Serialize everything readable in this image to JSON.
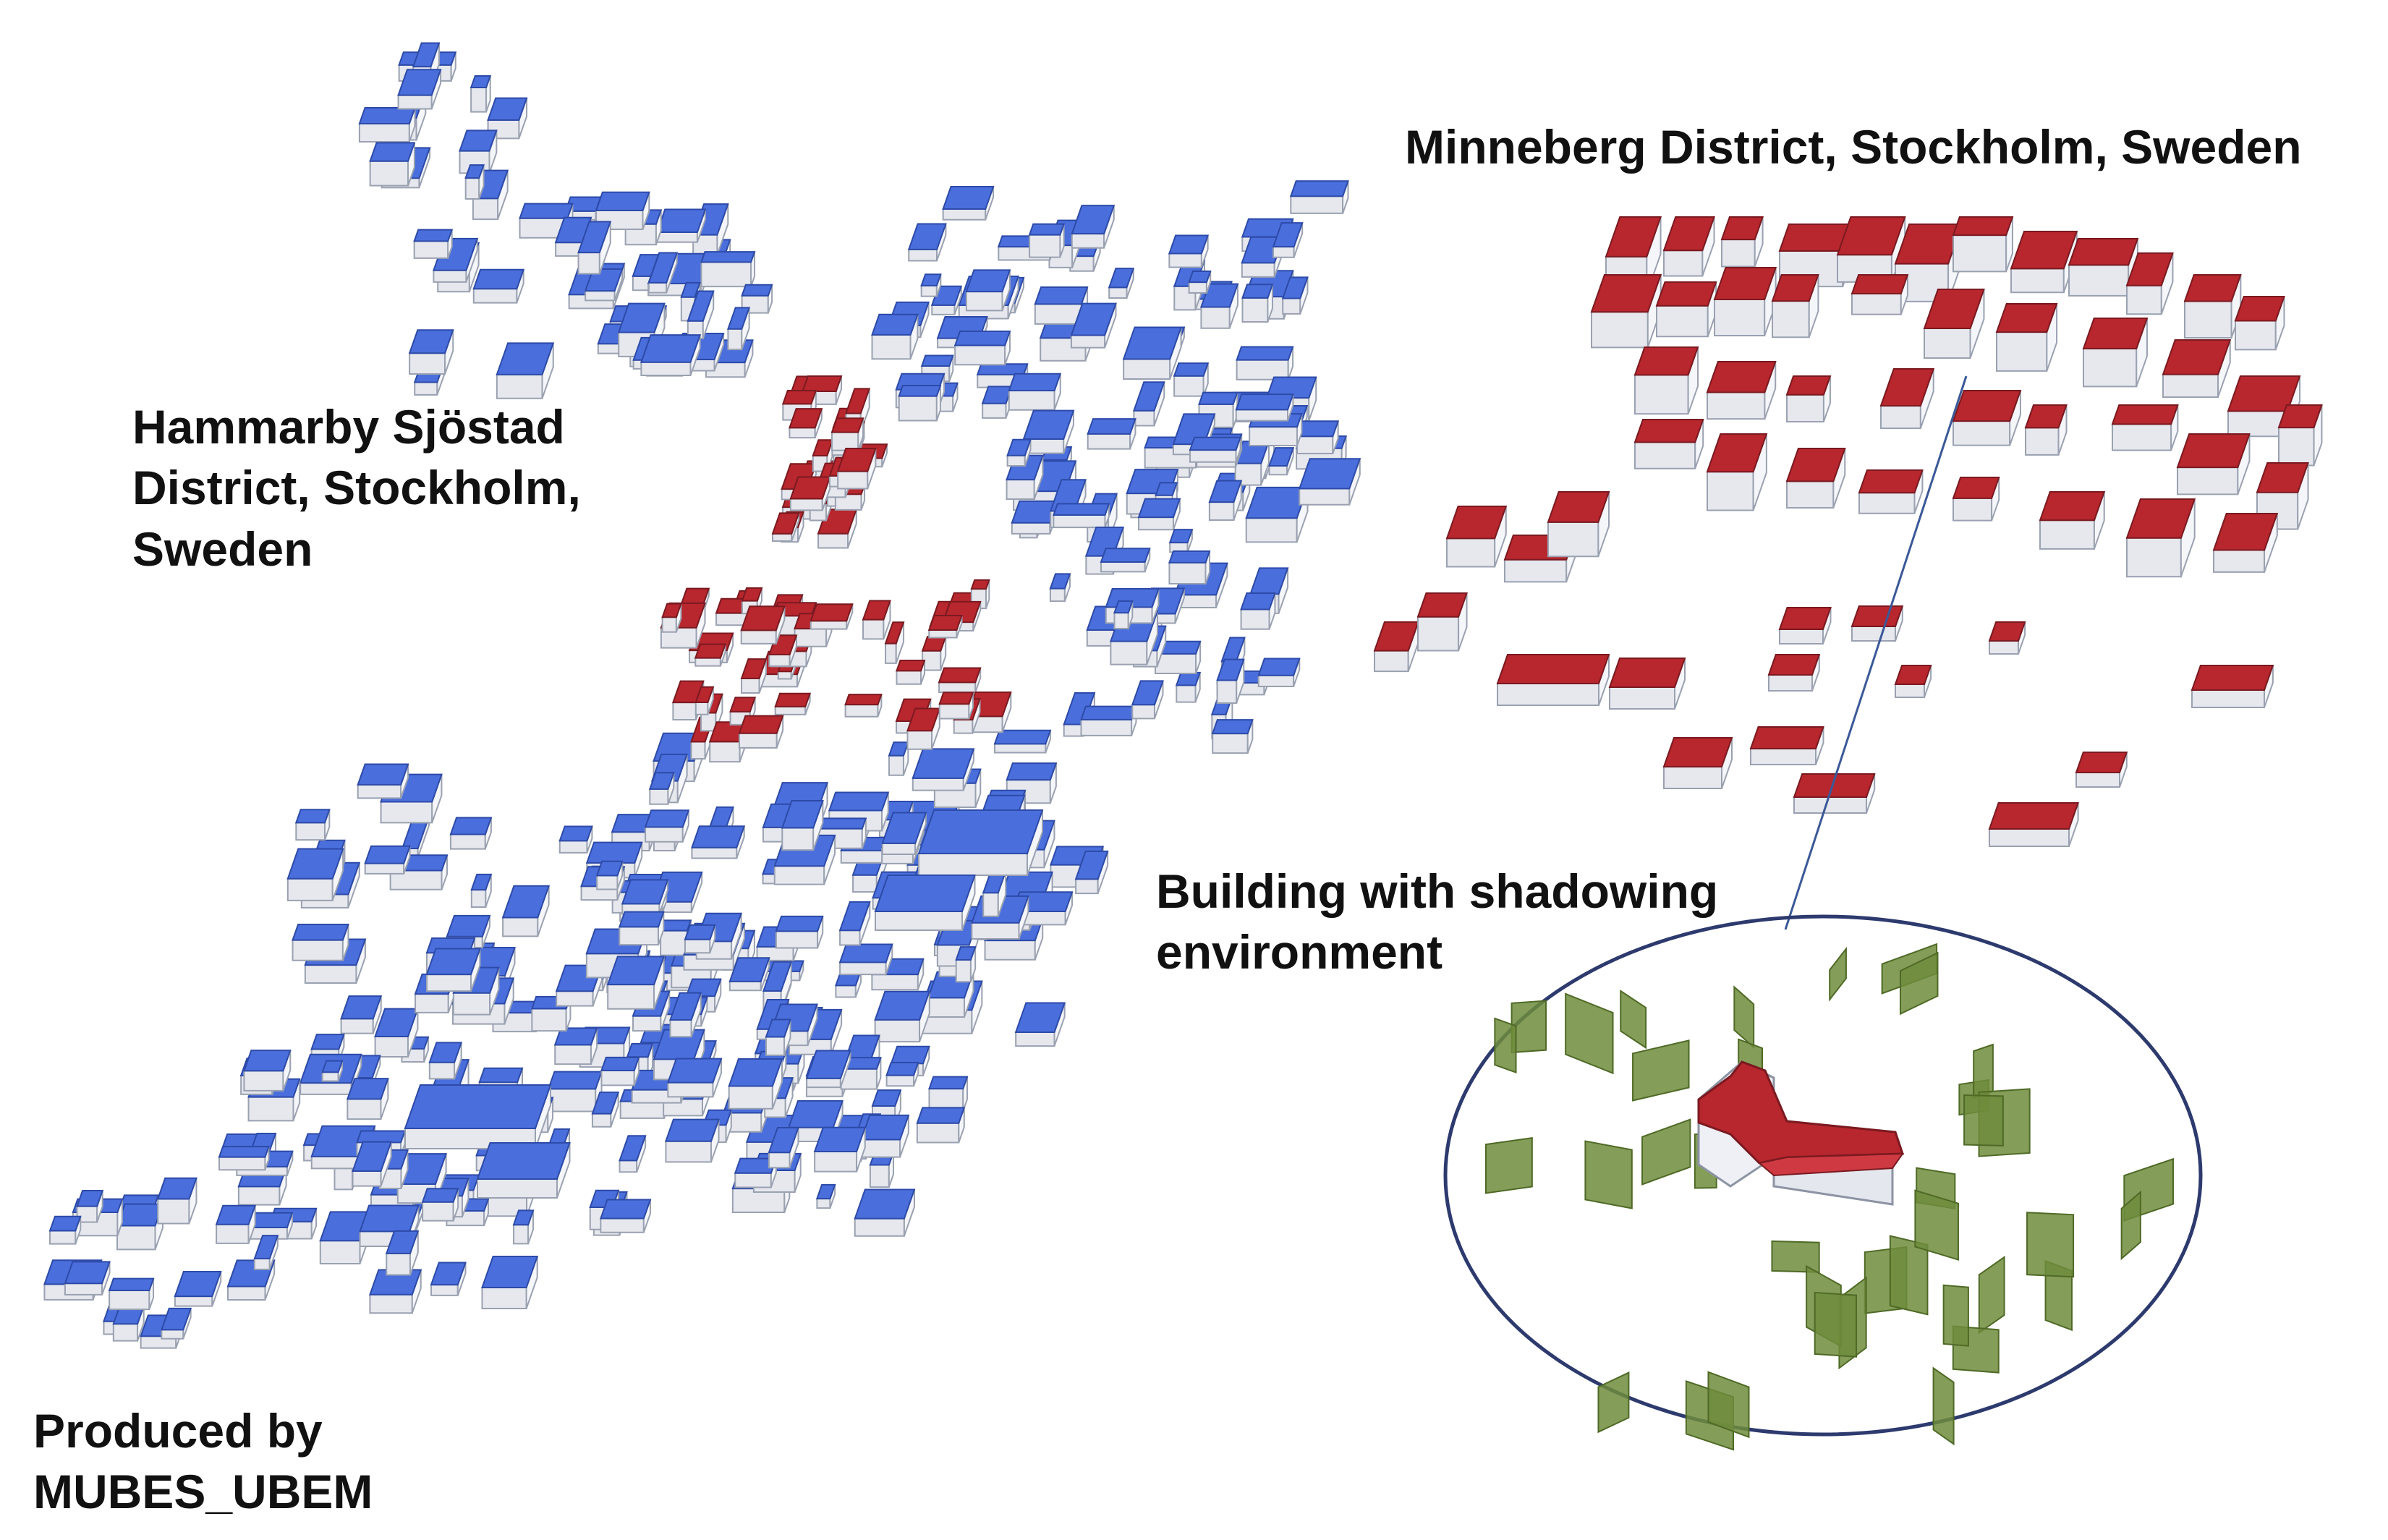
{
  "labels": {
    "hammarby": [
      "Hammarby Sjöstad",
      "District, Stockholm,",
      "Sweden"
    ],
    "minneberg": "Minneberg District, Stockholm, Sweden",
    "building": [
      "Building with shadowing",
      "environment"
    ],
    "produced": [
      "Produced by",
      "MUBES_UBEM"
    ]
  },
  "colors": {
    "background": "#ffffff",
    "hammarby_roof": "#4a6fdc",
    "minneberg_roof": "#b8262e",
    "shadow_surfaces": "#6e8c3c",
    "wall_face": "#e6e8ee",
    "ellipse_stroke": "#2d3a6e",
    "text": "#111111"
  },
  "icons": [
    "hammarby-building-block",
    "minneberg-building-block",
    "shadowing-surface",
    "callout-ellipse",
    "callout-line"
  ]
}
